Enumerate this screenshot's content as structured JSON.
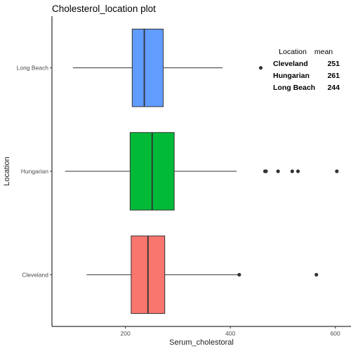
{
  "chart_data": {
    "type": "boxplot",
    "orientation": "horizontal",
    "title": "Cholesterol_location plot",
    "xlabel": "Serum_cholestoral",
    "ylabel": "Location",
    "xlim": [
      60,
      630
    ],
    "xticks": [
      200,
      400,
      600
    ],
    "grid": false,
    "legend": "none",
    "categories": [
      "Cleveland",
      "Hungarian",
      "Long Beach"
    ],
    "series": [
      {
        "category": "Cleveland",
        "color": "#F8766D",
        "whisker_low": 126,
        "q1": 211,
        "median": 243,
        "q3": 275,
        "whisker_high": 417,
        "outliers": [
          417,
          564
        ]
      },
      {
        "category": "Hungarian",
        "color": "#00BA38",
        "whisker_low": 85,
        "q1": 209,
        "median": 251,
        "q3": 293,
        "whisker_high": 412,
        "outliers": [
          466,
          468,
          491,
          518,
          529,
          603
        ]
      },
      {
        "category": "Long Beach",
        "color": "#619CFF",
        "whisker_low": 100,
        "q1": 213,
        "median": 236,
        "q3": 272,
        "whisker_high": 385,
        "outliers": [
          458
        ]
      }
    ],
    "annotation_table": {
      "columns": [
        "Location",
        "mean"
      ],
      "rows": [
        [
          "Cleveland",
          "251"
        ],
        [
          "Hungarian",
          "261"
        ],
        [
          "Long Beach",
          "244"
        ]
      ]
    }
  }
}
